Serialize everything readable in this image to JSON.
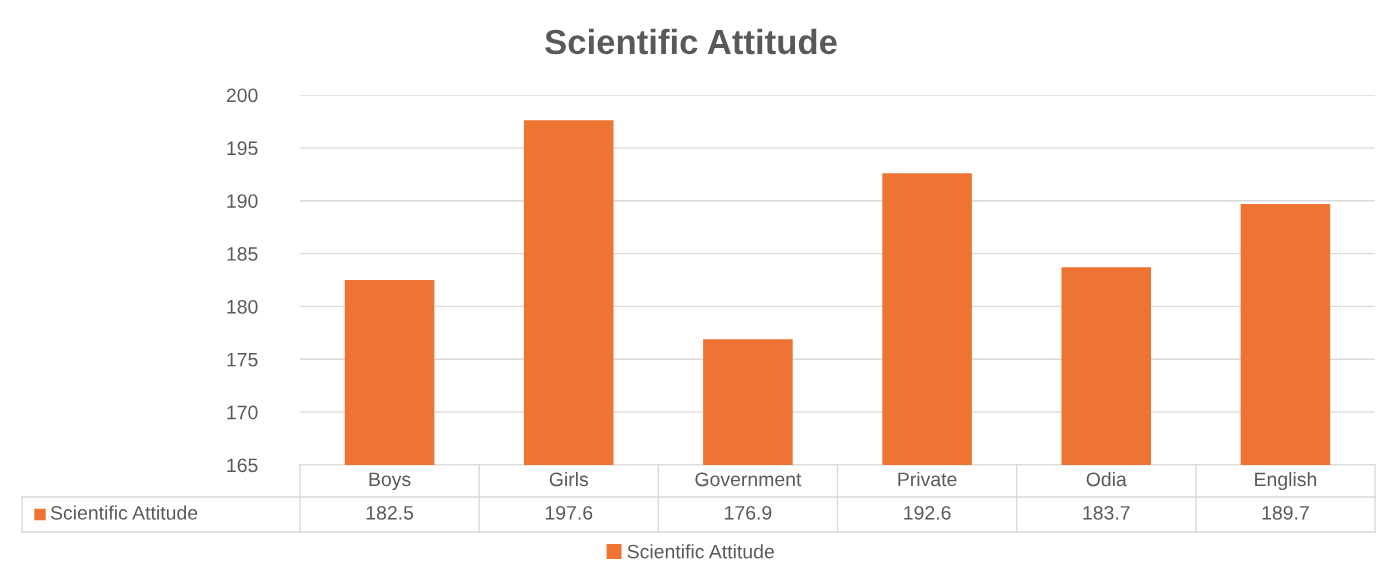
{
  "chart_data": {
    "type": "bar",
    "title": "Scientific Attitude",
    "categories": [
      "Boys",
      "Girls",
      "Government",
      "Private",
      "Odia",
      "English"
    ],
    "series": [
      {
        "name": "Scientific Attitude",
        "color": "#ee7433",
        "values": [
          182.5,
          197.6,
          176.9,
          192.6,
          183.7,
          189.7
        ]
      }
    ],
    "ylim": [
      165,
      200
    ],
    "yticks": [
      165,
      170,
      175,
      180,
      185,
      190,
      195,
      200
    ],
    "grid": "y",
    "legend": "bottom",
    "data_labels": true
  }
}
